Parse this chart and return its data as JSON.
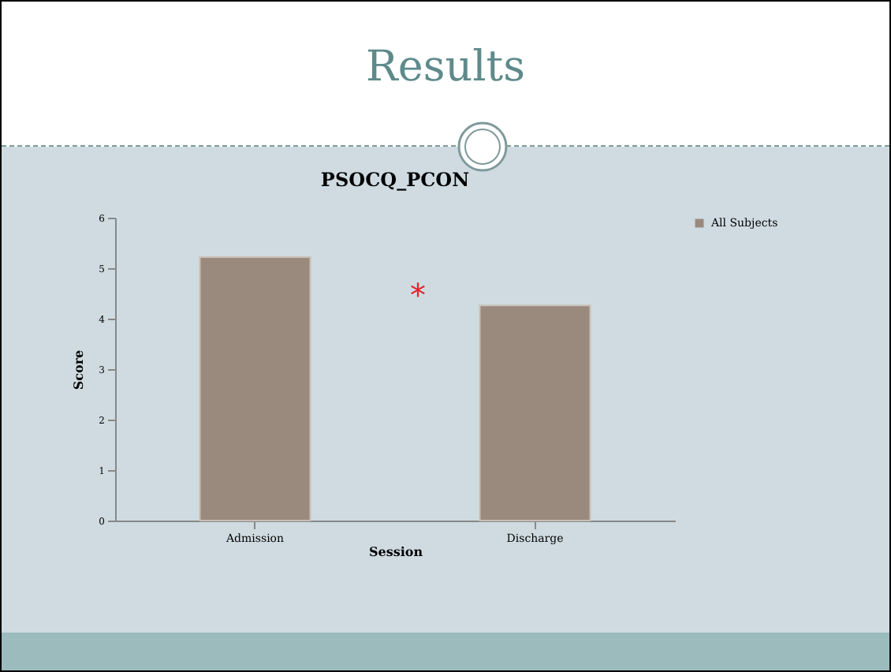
{
  "chart_data": {
    "type": "bar",
    "title": "Results",
    "subtitle": "PSOCQ_PCON",
    "xlabel": "Session",
    "ylabel": "Score",
    "categories": [
      "Admission",
      "Discharge"
    ],
    "series": [
      {
        "name": "All Subjects",
        "color": "#9a8a7e",
        "values": [
          5.22,
          4.26
        ]
      }
    ],
    "ylim": [
      0,
      6
    ],
    "yticks": [
      0,
      1,
      2,
      3,
      4,
      5,
      6
    ],
    "grid": false,
    "legend": "right",
    "annotations": [
      "*"
    ]
  }
}
